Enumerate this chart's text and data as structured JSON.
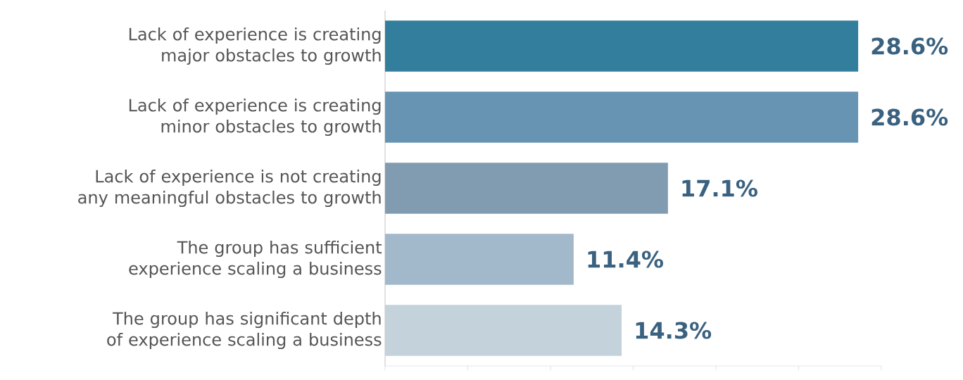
{
  "chart_data": {
    "type": "bar",
    "orientation": "horizontal",
    "categories": [
      "Lack of experience is creating major obstacles to growth",
      "Lack of experience is creating minor obstacles to growth",
      "Lack of experience is not creating any meaningful obstacles to growth",
      "The group has sufficient experience scaling a business",
      "The group has significant depth of experience scaling a business"
    ],
    "values": [
      28.6,
      28.6,
      17.1,
      11.4,
      14.3
    ],
    "colors": [
      "#337e9c",
      "#6794b3",
      "#819cb0",
      "#a2b8cb",
      "#c4d2dc"
    ],
    "value_labels": [
      "28.6%",
      "28.6%",
      "17.1%",
      "11.4%",
      "14.3%"
    ],
    "xlim": [
      0,
      30
    ],
    "xticks": [
      {
        "value": 0,
        "label": null
      },
      {
        "value": 5,
        "label": null
      },
      {
        "value": 10,
        "label": null
      },
      {
        "value": 15,
        "label": null
      },
      {
        "value": 20,
        "label": null
      },
      {
        "value": 25,
        "label": null
      },
      {
        "value": 30,
        "label": null
      }
    ],
    "tick_labels": "y",
    "grid": false
  }
}
